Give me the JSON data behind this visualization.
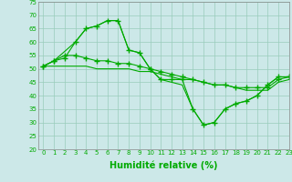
{
  "xlabel": "Humidité relative (%)",
  "xlim": [
    -0.5,
    23
  ],
  "ylim": [
    20,
    75
  ],
  "xticks": [
    0,
    1,
    2,
    3,
    4,
    5,
    6,
    7,
    8,
    9,
    10,
    11,
    12,
    13,
    14,
    15,
    16,
    17,
    18,
    19,
    20,
    21,
    22,
    23
  ],
  "yticks": [
    20,
    25,
    30,
    35,
    40,
    45,
    50,
    55,
    60,
    65,
    70,
    75
  ],
  "background_color": "#cce8e8",
  "grid_color": "#99ccbb",
  "line_color": "#00aa00",
  "line1_x": [
    0,
    1,
    2,
    3,
    4,
    5,
    6,
    7,
    8,
    9,
    10,
    11,
    12,
    13,
    14,
    15,
    16,
    17,
    18,
    19,
    20,
    21,
    22,
    23
  ],
  "line1_y": [
    51,
    53,
    54,
    60,
    65,
    66,
    68,
    68,
    57,
    56,
    50,
    46,
    46,
    46,
    35,
    29,
    30,
    35,
    37,
    38,
    40,
    44,
    47,
    47
  ],
  "line2_x": [
    0,
    1,
    2,
    3,
    4,
    5,
    6,
    7,
    8,
    9,
    10,
    11,
    12,
    13,
    14,
    15,
    16,
    17,
    18,
    19,
    20,
    21,
    22,
    23
  ],
  "line2_y": [
    51,
    53,
    55,
    55,
    54,
    53,
    53,
    52,
    52,
    51,
    50,
    49,
    48,
    47,
    46,
    45,
    44,
    44,
    43,
    43,
    43,
    43,
    46,
    47
  ],
  "line3_x": [
    0,
    1,
    2,
    3,
    4,
    5,
    6,
    7,
    8,
    9,
    10,
    11,
    12,
    13,
    14,
    15,
    16,
    17,
    18,
    19,
    20,
    21,
    22,
    23
  ],
  "line3_y": [
    51,
    51,
    51,
    51,
    51,
    50,
    50,
    50,
    50,
    49,
    49,
    48,
    47,
    46,
    46,
    45,
    44,
    44,
    43,
    42,
    42,
    42,
    45,
    46
  ],
  "line4_x": [
    0,
    1,
    3,
    4,
    5,
    6,
    7,
    8,
    9,
    10,
    11,
    12,
    13,
    14,
    15,
    16,
    17,
    18,
    19,
    20,
    21,
    22,
    23
  ],
  "line4_y": [
    51,
    53,
    60,
    65,
    66,
    68,
    68,
    57,
    56,
    50,
    46,
    45,
    44,
    35,
    29,
    30,
    35,
    37,
    38,
    40,
    44,
    47,
    47
  ],
  "marker": "+",
  "marker_size": 4,
  "line_width": 0.8,
  "tick_fontsize": 5,
  "xlabel_fontsize": 7,
  "xlabel_fontweight": "bold",
  "xlabel_color": "#00aa00"
}
